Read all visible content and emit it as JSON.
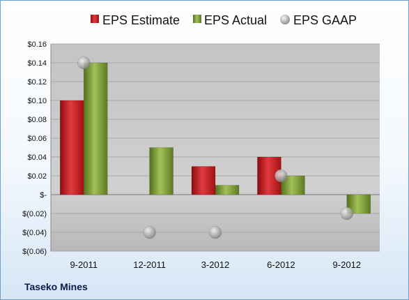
{
  "company": "Taseko Mines",
  "chart_data": {
    "type": "bar",
    "categories": [
      "9-2011",
      "12-2011",
      "3-2012",
      "6-2012",
      "9-2012"
    ],
    "series": [
      {
        "name": "EPS Estimate",
        "kind": "bar",
        "color": "#c0161c",
        "values": [
          0.1,
          null,
          0.03,
          0.04,
          null
        ]
      },
      {
        "name": "EPS Actual",
        "kind": "bar",
        "color": "#7a9a2e",
        "values": [
          0.14,
          0.05,
          0.01,
          0.02,
          -0.02
        ]
      },
      {
        "name": "EPS GAAP",
        "kind": "marker",
        "color": "#9a9a9a",
        "values": [
          0.14,
          -0.04,
          -0.04,
          0.02,
          -0.02
        ]
      }
    ],
    "y_ticks": [
      {
        "value": 0.16,
        "label": "$0.16"
      },
      {
        "value": 0.14,
        "label": "$0.14"
      },
      {
        "value": 0.12,
        "label": "$0.12"
      },
      {
        "value": 0.1,
        "label": "$0.10"
      },
      {
        "value": 0.08,
        "label": "$0.08"
      },
      {
        "value": 0.06,
        "label": "$0.06"
      },
      {
        "value": 0.04,
        "label": "$0.04"
      },
      {
        "value": 0.02,
        "label": "$0.02"
      },
      {
        "value": 0,
        "label": "$-"
      },
      {
        "value": -0.02,
        "label": "$(0.02)"
      },
      {
        "value": -0.04,
        "label": "$(0.04)"
      },
      {
        "value": -0.06,
        "label": "$(0.06)"
      }
    ],
    "ylim": [
      -0.06,
      0.16
    ],
    "grid": true,
    "legend_position": "top"
  }
}
